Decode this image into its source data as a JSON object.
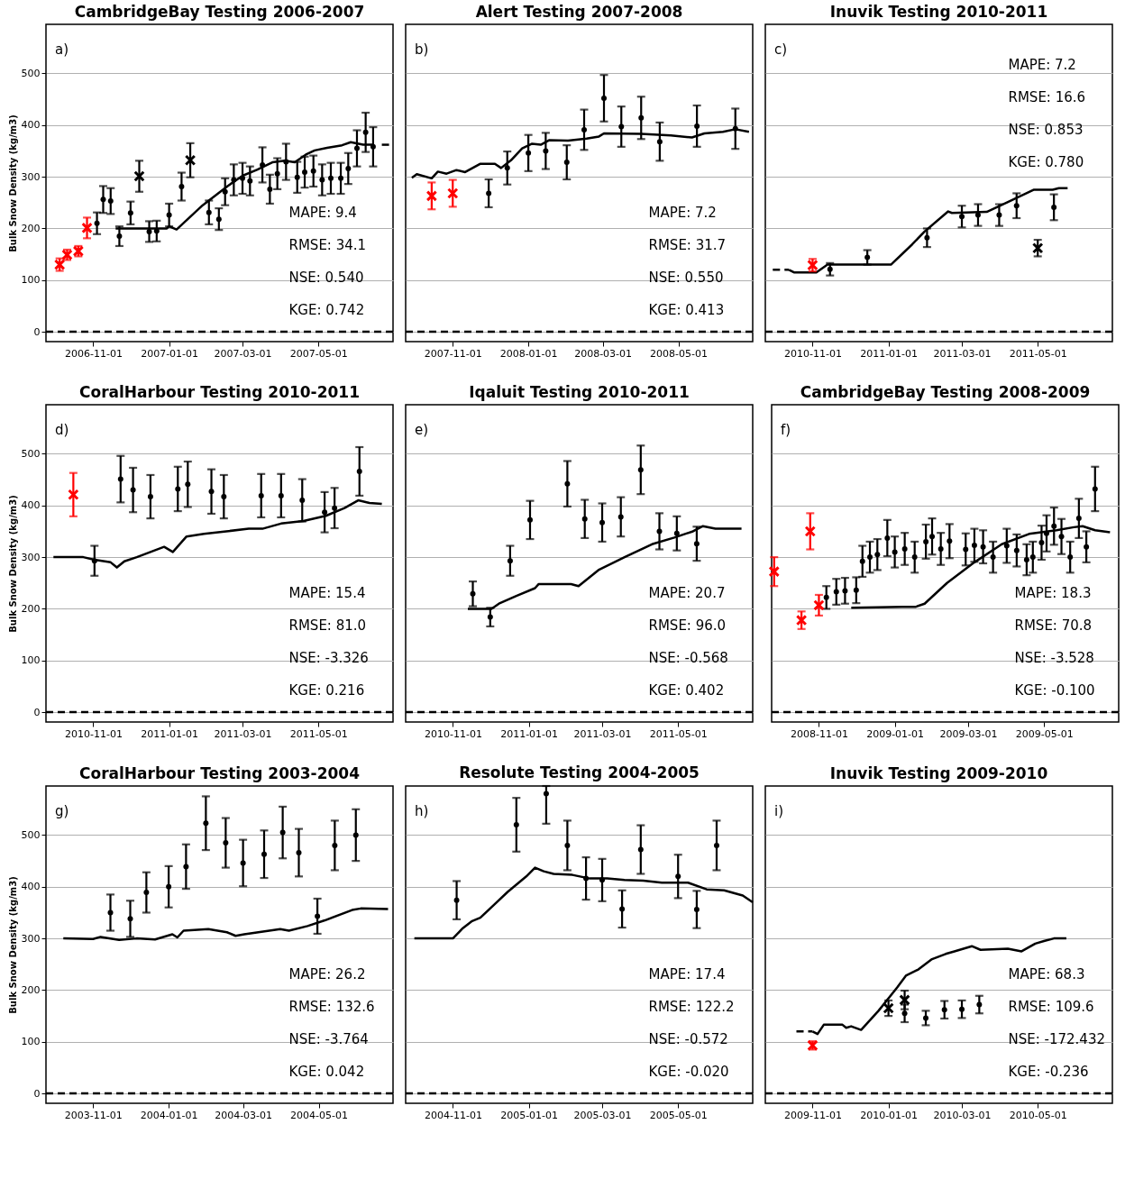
{
  "chart_data": [
    {
      "type": "line",
      "title": "CambridgeBay Testing 2006-2007",
      "ylabel": "Bulk Snow Density (kg/m3)",
      "xlim": [
        "2006-09-24",
        "2007-06-30"
      ],
      "xticks": [
        "2006-11-01",
        "2007-01-01",
        "2007-03-01",
        "2007-05-01"
      ],
      "ylim": [
        -19,
        595
      ],
      "yticks": [
        0,
        100,
        200,
        300,
        400,
        500
      ],
      "grid": "y",
      "annotations": [
        "a)",
        "MAPE: 9.4",
        "RMSE: 34.1",
        "NSE: 0.540",
        "KGE: 0.742"
      ],
      "ref_lines": [
        {
          "axis": "y",
          "value": 0,
          "color": "#000000",
          "line_style": "dashed"
        }
      ],
      "series": [
        {
          "type": "line",
          "color": "#000000",
          "line_style": "solid",
          "x": [
            "2006-11-19",
            "2006-12-30",
            "2007-01-01",
            "2007-01-07",
            "2007-01-28",
            "2007-02-17",
            "2007-03-01",
            "2007-03-13",
            "2007-03-25",
            "2007-04-04",
            "2007-04-12",
            "2007-04-21",
            "2007-04-28",
            "2007-05-08",
            "2007-05-20",
            "2007-05-27",
            "2007-06-06",
            "2007-06-14"
          ],
          "values": [
            200,
            200,
            204,
            198,
            245,
            282,
            302,
            314,
            328,
            331,
            328,
            343,
            351,
            356,
            361,
            367,
            362,
            362
          ]
        },
        {
          "type": "line",
          "color": "#000000",
          "line_style": "dashed",
          "x": [
            "2007-06-21",
            "2007-06-27"
          ],
          "values": [
            362,
            362
          ]
        },
        {
          "type": "scatter",
          "marker": "circle",
          "color": "#000000",
          "x": [
            "2006-11-04",
            "2006-11-09",
            "2006-11-15",
            "2006-11-22",
            "2006-12-01",
            "2006-12-16",
            "2006-12-22",
            "2007-01-01",
            "2007-01-11",
            "2007-02-02",
            "2007-02-10",
            "2007-02-15",
            "2007-02-22",
            "2007-03-01",
            "2007-03-07",
            "2007-03-17",
            "2007-03-23",
            "2007-03-29",
            "2007-04-05",
            "2007-04-14",
            "2007-04-20",
            "2007-04-27",
            "2007-05-04",
            "2007-05-11",
            "2007-05-19",
            "2007-05-25",
            "2007-06-01",
            "2007-06-08",
            "2007-06-14"
          ],
          "values": [
            210,
            256,
            253,
            185,
            230,
            194,
            195,
            226,
            281,
            231,
            218,
            271,
            294,
            297,
            292,
            323,
            276,
            306,
            329,
            299,
            309,
            311,
            294,
            297,
            297,
            316,
            355,
            386,
            358
          ],
          "errors": [
            21,
            26,
            25,
            19,
            22,
            20,
            20,
            22,
            27,
            23,
            21,
            26,
            30,
            30,
            28,
            34,
            28,
            30,
            35,
            30,
            30,
            30,
            30,
            30,
            30,
            30,
            35,
            38,
            38
          ]
        },
        {
          "type": "scatter",
          "marker": "cross",
          "color": "#ff0000",
          "x": [
            "2006-10-05",
            "2006-10-11",
            "2006-10-20",
            "2006-10-27"
          ],
          "values": [
            130,
            149,
            156,
            201
          ],
          "errors": [
            12,
            10,
            10,
            20
          ]
        },
        {
          "type": "scatter",
          "marker": "cross",
          "color": "#000000",
          "x": [
            "2006-12-08",
            "2007-01-18"
          ],
          "values": [
            301,
            332
          ],
          "errors": [
            30,
            33
          ]
        }
      ]
    },
    {
      "type": "line",
      "title": "Alert Testing 2007-2008",
      "xlim": [
        "2007-09-24",
        "2008-06-30"
      ],
      "xticks": [
        "2007-11-01",
        "2008-01-01",
        "2008-03-01",
        "2008-05-01"
      ],
      "ylim": [
        -19,
        595
      ],
      "yticks": [
        0,
        100,
        200,
        300,
        400,
        500
      ],
      "grid": "y",
      "tick_labels": "x",
      "annotations": [
        "b)",
        "MAPE: 7.2",
        "RMSE: 31.7",
        "NSE: 0.550",
        "KGE: 0.413"
      ],
      "ref_lines": [
        {
          "axis": "y",
          "value": 0,
          "color": "#000000",
          "line_style": "dashed"
        }
      ],
      "series": [
        {
          "type": "line",
          "color": "#000000",
          "line_style": "solid",
          "x": [
            "2007-09-29",
            "2007-10-03",
            "2007-10-15",
            "2007-10-20",
            "2007-10-27",
            "2007-11-04",
            "2007-11-11",
            "2007-11-23",
            "2007-12-05",
            "2007-12-10",
            "2007-12-18",
            "2007-12-27",
            "2008-01-04",
            "2008-01-11",
            "2008-01-18",
            "2008-02-02",
            "2008-02-17",
            "2008-02-27",
            "2008-03-02",
            "2008-04-01",
            "2008-04-25",
            "2008-05-12",
            "2008-05-22",
            "2008-06-06",
            "2008-06-16",
            "2008-06-27"
          ],
          "values": [
            298,
            305,
            297,
            310,
            306,
            313,
            309,
            325,
            325,
            317,
            332,
            355,
            364,
            362,
            371,
            370,
            374,
            378,
            384,
            383,
            380,
            376,
            384,
            387,
            392,
            387
          ]
        },
        {
          "type": "scatter",
          "marker": "circle",
          "color": "#000000",
          "x": [
            "2007-11-30",
            "2007-12-15",
            "2008-01-01",
            "2008-01-15",
            "2008-02-01",
            "2008-02-15",
            "2008-03-02",
            "2008-03-16",
            "2008-04-01",
            "2008-04-16",
            "2008-05-16",
            "2008-06-16"
          ],
          "values": [
            268,
            317,
            346,
            350,
            328,
            391,
            452,
            397,
            414,
            368,
            398,
            393
          ],
          "errors": [
            27,
            32,
            35,
            35,
            33,
            39,
            45,
            39,
            41,
            37,
            40,
            39
          ]
        },
        {
          "type": "scatter",
          "marker": "cross",
          "color": "#ff0000",
          "x": [
            "2007-10-15",
            "2007-11-01"
          ],
          "values": [
            263,
            268
          ],
          "errors": [
            26,
            26
          ]
        }
      ]
    },
    {
      "type": "line",
      "title": "Inuvik Testing 2010-2011",
      "xlim": [
        "2010-09-24",
        "2011-06-30"
      ],
      "xticks": [
        "2010-11-01",
        "2011-01-01",
        "2011-03-01",
        "2011-05-01"
      ],
      "ylim": [
        -19,
        595
      ],
      "yticks": [
        0,
        100,
        200,
        300,
        400,
        500
      ],
      "grid": "y",
      "tick_labels": "x",
      "annotations": [
        "c)",
        "MAPE: 7.2",
        "RMSE: 16.6",
        "NSE: 0.853",
        "KGE: 0.780"
      ],
      "ref_lines": [
        {
          "axis": "y",
          "value": 0,
          "color": "#000000",
          "line_style": "dashed"
        }
      ],
      "series": [
        {
          "type": "line",
          "color": "#000000",
          "line_style": "dashed",
          "x": [
            "2010-09-30",
            "2010-10-13"
          ],
          "values": [
            120,
            120
          ]
        },
        {
          "type": "line",
          "color": "#000000",
          "line_style": "solid",
          "x": [
            "2010-10-13",
            "2010-10-17",
            "2010-11-04",
            "2010-11-13",
            "2011-01-03",
            "2011-01-20",
            "2011-01-30",
            "2011-02-18",
            "2011-02-21",
            "2011-03-21",
            "2011-04-07",
            "2011-04-28",
            "2011-05-13",
            "2011-05-18",
            "2011-05-25"
          ],
          "values": [
            120,
            115,
            115,
            130,
            130,
            169,
            194,
            233,
            230,
            232,
            251,
            275,
            275,
            278,
            278
          ]
        },
        {
          "type": "scatter",
          "marker": "circle",
          "color": "#000000",
          "x": [
            "2010-11-15",
            "2010-12-15",
            "2011-02-01",
            "2011-03-01",
            "2011-03-14",
            "2011-03-31",
            "2011-04-14",
            "2011-05-14"
          ],
          "values": [
            121,
            144,
            182,
            223,
            226,
            226,
            244,
            241
          ],
          "errors": [
            12,
            14,
            18,
            21,
            21,
            21,
            24,
            25
          ]
        },
        {
          "type": "scatter",
          "marker": "cross",
          "color": "#ff0000",
          "x": [
            "2010-11-01"
          ],
          "values": [
            129
          ],
          "errors": [
            12
          ]
        },
        {
          "type": "scatter",
          "marker": "cross",
          "color": "#000000",
          "x": [
            "2011-05-01"
          ],
          "values": [
            162
          ],
          "errors": [
            16
          ]
        }
      ]
    },
    {
      "type": "line",
      "title": "CoralHarbour Testing 2010-2011",
      "ylabel": "Bulk Snow Density (kg/m3)",
      "xlim": [
        "2010-09-24",
        "2011-06-30"
      ],
      "xticks": [
        "2010-11-01",
        "2011-01-01",
        "2011-03-01",
        "2011-05-01"
      ],
      "ylim": [
        -19,
        595
      ],
      "yticks": [
        0,
        100,
        200,
        300,
        400,
        500
      ],
      "grid": "y",
      "annotations": [
        "d)",
        "MAPE: 15.4",
        "RMSE: 81.0",
        "NSE: -3.326",
        "KGE: 0.216"
      ],
      "ref_lines": [
        {
          "axis": "y",
          "value": 0,
          "color": "#000000",
          "line_style": "dashed"
        }
      ],
      "series": [
        {
          "type": "line",
          "color": "#000000",
          "line_style": "solid",
          "x": [
            "2010-09-30",
            "2010-10-24",
            "2010-11-02",
            "2010-11-15",
            "2010-11-20",
            "2010-11-26",
            "2010-12-06",
            "2010-12-17",
            "2010-12-28",
            "2011-01-04",
            "2011-01-15",
            "2011-01-29",
            "2011-02-16",
            "2011-03-06",
            "2011-03-17",
            "2011-04-01",
            "2011-04-19",
            "2011-05-07",
            "2011-05-22",
            "2011-06-02",
            "2011-06-11",
            "2011-06-21"
          ],
          "values": [
            300,
            300,
            295,
            290,
            280,
            292,
            300,
            310,
            320,
            310,
            340,
            345,
            350,
            355,
            355,
            365,
            370,
            380,
            395,
            410,
            405,
            403
          ]
        },
        {
          "type": "scatter",
          "marker": "circle",
          "color": "#000000",
          "x": [
            "2010-11-02",
            "2010-11-23",
            "2010-12-03",
            "2010-12-17",
            "2011-01-08",
            "2011-01-16",
            "2011-02-04",
            "2011-02-14",
            "2011-03-16",
            "2011-04-01",
            "2011-04-18",
            "2011-05-06",
            "2011-05-14",
            "2011-06-03"
          ],
          "values": [
            293,
            451,
            430,
            417,
            432,
            441,
            427,
            417,
            419,
            419,
            410,
            387,
            395,
            466
          ],
          "errors": [
            29,
            45,
            43,
            42,
            43,
            44,
            43,
            42,
            42,
            42,
            41,
            39,
            39,
            47
          ]
        },
        {
          "type": "scatter",
          "marker": "cross",
          "color": "#ff0000",
          "x": [
            "2010-10-16"
          ],
          "values": [
            421
          ],
          "errors": [
            42
          ]
        }
      ]
    },
    {
      "type": "line",
      "title": "Iqaluit Testing 2010-2011",
      "xlim": [
        "2010-09-24",
        "2011-06-30"
      ],
      "xticks": [
        "2010-11-01",
        "2011-01-01",
        "2011-03-01",
        "2011-05-01"
      ],
      "ylim": [
        -19,
        595
      ],
      "yticks": [
        0,
        100,
        200,
        300,
        400,
        500
      ],
      "grid": "y",
      "tick_labels": "x",
      "annotations": [
        "e)",
        "MAPE: 20.7",
        "RMSE: 96.0",
        "NSE: -0.568",
        "KGE: 0.402"
      ],
      "ref_lines": [
        {
          "axis": "y",
          "value": 0,
          "color": "#000000",
          "line_style": "dashed"
        }
      ],
      "series": [
        {
          "type": "line",
          "color": "#000000",
          "line_style": "solid",
          "x": [
            "2010-11-13",
            "2010-12-02",
            "2010-12-08",
            "2010-12-22",
            "2011-01-06",
            "2011-01-09",
            "2011-02-04",
            "2011-02-10",
            "2011-02-26",
            "2011-03-19",
            "2011-04-10",
            "2011-04-28",
            "2011-05-13",
            "2011-05-21",
            "2011-05-31",
            "2011-06-21"
          ],
          "values": [
            200,
            200,
            210,
            225,
            240,
            248,
            248,
            244,
            275,
            300,
            325,
            338,
            350,
            360,
            355,
            355
          ]
        },
        {
          "type": "scatter",
          "marker": "circle",
          "color": "#000000",
          "x": [
            "2010-11-17",
            "2010-12-01",
            "2010-12-17",
            "2011-01-02",
            "2011-02-01",
            "2011-02-15",
            "2011-03-01",
            "2011-03-16",
            "2011-04-01",
            "2011-04-16",
            "2011-04-30",
            "2011-05-16"
          ],
          "values": [
            229,
            184,
            293,
            372,
            442,
            374,
            367,
            378,
            469,
            350,
            346,
            326
          ],
          "errors": [
            24,
            18,
            29,
            37,
            44,
            37,
            37,
            38,
            47,
            35,
            33,
            33
          ]
        }
      ]
    },
    {
      "type": "line",
      "title": "CambridgeBay Testing 2008-2009",
      "xlim": [
        "2008-09-24",
        "2009-06-30"
      ],
      "xticks": [
        "2008-11-01",
        "2009-01-01",
        "2009-03-01",
        "2009-05-01"
      ],
      "ylim": [
        -19,
        595
      ],
      "yticks": [
        0,
        100,
        200,
        300,
        400,
        500
      ],
      "grid": "y",
      "tick_labels": "x",
      "annotations": [
        "f)",
        "MAPE: 18.3",
        "RMSE: 70.8",
        "NSE: -3.528",
        "KGE: -0.100"
      ],
      "ref_lines": [
        {
          "axis": "y",
          "value": 0,
          "color": "#000000",
          "line_style": "dashed"
        }
      ],
      "series": [
        {
          "type": "line",
          "color": "#000000",
          "line_style": "solid",
          "x": [
            "2008-11-27",
            "2009-01-07",
            "2009-01-18",
            "2009-01-25",
            "2009-02-12",
            "2009-03-06",
            "2009-03-28",
            "2009-04-19",
            "2009-05-11",
            "2009-05-25",
            "2009-06-01",
            "2009-06-11",
            "2009-06-23"
          ],
          "values": [
            202,
            204,
            204,
            210,
            250,
            290,
            325,
            345,
            352,
            358,
            360,
            352,
            348
          ]
        },
        {
          "type": "scatter",
          "marker": "circle",
          "color": "#000000",
          "x": [
            "2008-11-07",
            "2008-11-15",
            "2008-11-22",
            "2008-12-01",
            "2008-12-06",
            "2008-12-12",
            "2008-12-18",
            "2008-12-26",
            "2009-01-01",
            "2009-01-09",
            "2009-01-17",
            "2009-01-26",
            "2009-01-31",
            "2009-02-07",
            "2009-02-14",
            "2009-02-27",
            "2009-03-06",
            "2009-03-13",
            "2009-03-21",
            "2009-04-01",
            "2009-04-09",
            "2009-04-17",
            "2009-04-22",
            "2009-04-29",
            "2009-05-03",
            "2009-05-09",
            "2009-05-15",
            "2009-05-22",
            "2009-05-29",
            "2009-06-04",
            "2009-06-11"
          ],
          "values": [
            222,
            233,
            235,
            236,
            292,
            300,
            305,
            337,
            310,
            316,
            300,
            330,
            340,
            316,
            331,
            315,
            323,
            320,
            300,
            322,
            313,
            295,
            300,
            328,
            346,
            360,
            340,
            300,
            375,
            320,
            432
          ],
          "errors": [
            22,
            25,
            25,
            25,
            30,
            30,
            30,
            35,
            30,
            31,
            30,
            33,
            35,
            31,
            33,
            31,
            32,
            32,
            30,
            33,
            31,
            30,
            30,
            33,
            35,
            36,
            34,
            30,
            38,
            30,
            43
          ]
        },
        {
          "type": "scatter",
          "marker": "cross",
          "color": "#ff0000",
          "x": [
            "2008-09-26",
            "2008-10-18",
            "2008-10-25",
            "2008-11-01"
          ],
          "values": [
            272,
            178,
            350,
            207
          ],
          "errors": [
            28,
            17,
            35,
            20
          ]
        }
      ]
    },
    {
      "type": "line",
      "title": "CoralHarbour Testing 2003-2004",
      "ylabel": "Bulk Snow Density (kg/m3)",
      "xlim": [
        "2003-09-24",
        "2004-06-30"
      ],
      "xticks": [
        "2003-11-01",
        "2004-01-01",
        "2004-03-01",
        "2004-05-01"
      ],
      "ylim": [
        -19,
        595
      ],
      "yticks": [
        0,
        100,
        200,
        300,
        400,
        500
      ],
      "grid": "y",
      "annotations": [
        "g)",
        "MAPE: 26.2",
        "RMSE: 132.6",
        "NSE: -3.764",
        "KGE: 0.042"
      ],
      "ref_lines": [
        {
          "axis": "y",
          "value": 0,
          "color": "#000000",
          "line_style": "dashed"
        }
      ],
      "series": [
        {
          "type": "line",
          "color": "#000000",
          "line_style": "solid",
          "x": [
            "2003-10-08",
            "2003-11-01",
            "2003-11-07",
            "2003-11-22",
            "2003-12-06",
            "2003-12-21",
            "2004-01-04",
            "2004-01-08",
            "2004-01-13",
            "2004-02-02",
            "2004-02-17",
            "2004-02-24",
            "2004-03-02",
            "2004-03-31",
            "2004-04-07",
            "2004-04-22",
            "2004-05-06",
            "2004-05-28",
            "2004-06-04",
            "2004-06-26"
          ],
          "values": [
            300,
            299,
            303,
            297,
            300,
            298,
            308,
            302,
            315,
            318,
            312,
            305,
            308,
            318,
            315,
            324,
            335,
            355,
            358,
            357
          ]
        },
        {
          "type": "scatter",
          "marker": "circle",
          "color": "#000000",
          "x": [
            "2003-11-15",
            "2003-12-01",
            "2003-12-14",
            "2004-01-01",
            "2004-01-15",
            "2004-01-31",
            "2004-02-16",
            "2004-03-01",
            "2004-03-18",
            "2004-04-02",
            "2004-04-15",
            "2004-04-30",
            "2004-05-14",
            "2004-05-31"
          ],
          "values": [
            350,
            338,
            389,
            400,
            439,
            523,
            485,
            446,
            463,
            505,
            466,
            343,
            480,
            500
          ],
          "errors": [
            35,
            35,
            39,
            40,
            43,
            52,
            48,
            45,
            46,
            50,
            46,
            34,
            48,
            50
          ]
        }
      ]
    },
    {
      "type": "line",
      "title": "Resolute Testing 2004-2005",
      "xlim": [
        "2004-09-24",
        "2005-06-30"
      ],
      "xticks": [
        "2004-11-01",
        "2005-01-01",
        "2005-03-01",
        "2005-05-01"
      ],
      "ylim": [
        -19,
        595
      ],
      "yticks": [
        0,
        100,
        200,
        300,
        400,
        500
      ],
      "grid": "y",
      "tick_labels": "x",
      "annotations": [
        "h)",
        "MAPE: 17.4",
        "RMSE: 122.2",
        "NSE: -0.572",
        "KGE: -0.020"
      ],
      "ref_lines": [
        {
          "axis": "y",
          "value": 0,
          "color": "#000000",
          "line_style": "dashed"
        }
      ],
      "series": [
        {
          "type": "line",
          "color": "#000000",
          "line_style": "solid",
          "x": [
            "2004-10-01",
            "2004-11-01",
            "2004-11-09",
            "2004-11-16",
            "2004-11-23",
            "2004-12-04",
            "2004-12-15",
            "2004-12-30",
            "2005-01-06",
            "2005-01-13",
            "2005-01-21",
            "2005-02-05",
            "2005-02-19",
            "2005-03-05",
            "2005-03-19",
            "2005-04-03",
            "2005-04-18",
            "2005-05-09",
            "2005-05-24",
            "2005-06-07",
            "2005-06-22",
            "2005-06-30"
          ],
          "values": [
            300,
            300,
            320,
            333,
            340,
            365,
            390,
            420,
            437,
            430,
            425,
            423,
            416,
            416,
            413,
            412,
            408,
            408,
            395,
            393,
            383,
            370
          ]
        },
        {
          "type": "scatter",
          "marker": "circle",
          "color": "#000000",
          "x": [
            "2004-11-04",
            "2004-12-22",
            "2005-01-15",
            "2005-02-01",
            "2005-02-16",
            "2005-03-01",
            "2005-03-17",
            "2005-04-01",
            "2005-05-01",
            "2005-05-16",
            "2005-06-01"
          ],
          "values": [
            374,
            520,
            580,
            480,
            416,
            413,
            357,
            472,
            420,
            356,
            480
          ],
          "errors": [
            37,
            52,
            [
              522,
              595
            ],
            48,
            41,
            41,
            36,
            47,
            42,
            36,
            48
          ]
        }
      ]
    },
    {
      "type": "line",
      "title": "Inuvik Testing 2009-2010",
      "xlim": [
        "2009-09-24",
        "2010-06-30"
      ],
      "xticks": [
        "2009-11-01",
        "2010-01-01",
        "2010-03-01",
        "2010-05-01"
      ],
      "ylim": [
        -19,
        595
      ],
      "yticks": [
        0,
        100,
        200,
        300,
        400,
        500
      ],
      "grid": "y",
      "tick_labels": "x",
      "annotations": [
        "i)",
        "MAPE: 68.3",
        "RMSE: 109.6",
        "NSE: -172.432",
        "KGE: -0.236"
      ],
      "ref_lines": [
        {
          "axis": "y",
          "value": 0,
          "color": "#000000",
          "line_style": "dashed"
        }
      ],
      "series": [
        {
          "type": "line",
          "color": "#000000",
          "line_style": "dashed",
          "x": [
            "2009-10-19",
            "2009-11-01"
          ],
          "values": [
            120,
            120
          ]
        },
        {
          "type": "line",
          "color": "#000000",
          "line_style": "solid",
          "x": [
            "2009-11-01",
            "2009-11-05",
            "2009-11-10",
            "2009-11-25",
            "2009-11-28",
            "2009-12-02",
            "2009-12-10",
            "2009-12-24",
            "2010-01-08",
            "2010-01-15",
            "2010-01-25",
            "2010-02-05",
            "2010-02-16",
            "2010-02-23",
            "2010-03-09",
            "2010-03-16",
            "2010-04-07",
            "2010-04-18",
            "2010-04-29",
            "2010-05-06",
            "2010-05-14",
            "2010-05-24"
          ],
          "values": [
            120,
            115,
            133,
            133,
            127,
            130,
            123,
            160,
            205,
            228,
            240,
            260,
            270,
            275,
            285,
            278,
            280,
            275,
            290,
            295,
            300,
            300
          ]
        },
        {
          "type": "scatter",
          "marker": "circle",
          "color": "#000000",
          "x": [
            "2010-01-14",
            "2010-01-31",
            "2010-02-15",
            "2010-03-01",
            "2010-03-15"
          ],
          "values": [
            155,
            146,
            162,
            163,
            172
          ],
          "errors": [
            17,
            14,
            17,
            17,
            17
          ]
        },
        {
          "type": "scatter",
          "marker": "cross",
          "color": "#ff0000",
          "x": [
            "2009-11-01"
          ],
          "values": [
            93
          ],
          "errors": [
            8
          ]
        },
        {
          "type": "scatter",
          "marker": "cross",
          "color": "#000000",
          "x": [
            "2010-01-01",
            "2010-01-14"
          ],
          "values": [
            165,
            181
          ],
          "errors": [
            15,
            18
          ]
        }
      ]
    }
  ]
}
